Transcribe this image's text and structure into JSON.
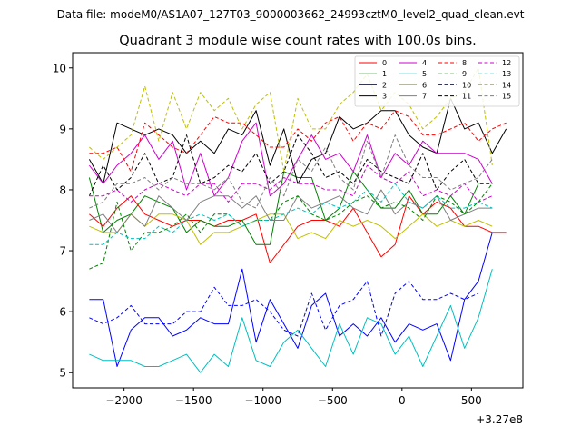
{
  "chart_data": {
    "type": "line",
    "suptitle": "Data file: modeM0/AS1A07_127T03_9000003662_24993cztM0_level2_quad_clean.evt",
    "title": "Quadrant 3 module wise count rates with 100.0s bins.",
    "xlabel": "",
    "ylabel": "",
    "x_offset_label": "+3.27e8",
    "xlim": [
      -2370,
      870
    ],
    "ylim": [
      4.75,
      10.25
    ],
    "xticks": [
      -2000,
      -1500,
      -1000,
      -500,
      0,
      500
    ],
    "xtick_labels": [
      "−2000",
      "−1500",
      "−1000",
      "−500",
      "0",
      "500"
    ],
    "yticks": [
      5,
      6,
      7,
      8,
      9,
      10
    ],
    "ytick_labels": [
      "5",
      "6",
      "7",
      "8",
      "9",
      "10"
    ],
    "legend_position": "upper-right",
    "x_start": -2250,
    "x_step": 100,
    "series": [
      {
        "name": "0",
        "color": "#ff0000",
        "dash": "solid",
        "values": [
          7.6,
          7.4,
          7.7,
          7.9,
          7.6,
          7.5,
          7.4,
          7.5,
          7.5,
          7.4,
          7.5,
          7.5,
          7.6,
          6.8,
          7.1,
          7.4,
          7.5,
          7.5,
          7.4,
          7.7,
          7.3,
          6.9,
          7.1,
          7.9,
          7.6,
          7.8,
          7.7,
          7.4,
          7.4,
          7.3,
          7.3
        ]
      },
      {
        "name": "1",
        "color": "#008000",
        "dash": "solid",
        "values": [
          8.2,
          7.3,
          7.5,
          7.6,
          7.9,
          7.8,
          7.7,
          7.3,
          7.5,
          7.4,
          7.4,
          7.5,
          7.1,
          7.1,
          8.3,
          8.2,
          8.2,
          7.5,
          7.7,
          8.3,
          8.0,
          7.7,
          7.7,
          8.0,
          7.6,
          7.6,
          7.9,
          7.6,
          8.1
        ]
      },
      {
        "name": "2",
        "color": "#0000ff",
        "dash": "solid",
        "values": [
          6.2,
          6.2,
          5.1,
          5.7,
          5.9,
          5.9,
          5.6,
          5.7,
          5.9,
          5.8,
          5.8,
          6.7,
          5.5,
          6.2,
          5.8,
          5.4,
          6.1,
          6.3,
          5.6,
          5.8,
          5.6,
          5.9,
          5.5,
          5.8,
          5.7,
          5.8,
          5.2,
          6.2,
          6.5,
          7.3
        ]
      },
      {
        "name": "3",
        "color": "#000000",
        "dash": "solid",
        "values": [
          8.5,
          8.1,
          9.1,
          9.0,
          8.9,
          9.0,
          8.9,
          8.6,
          8.8,
          8.6,
          9.0,
          8.9,
          9.3,
          8.4,
          9.0,
          8.1,
          8.5,
          8.6,
          9.2,
          9.0,
          9.1,
          9.3,
          9.3,
          8.9,
          8.7,
          8.6,
          9.5,
          9.0,
          9.1,
          8.6,
          9.0
        ]
      },
      {
        "name": "4",
        "color": "#cc00cc",
        "dash": "solid",
        "values": [
          8.4,
          8.1,
          8.4,
          8.6,
          8.9,
          8.5,
          8.8,
          8.0,
          8.6,
          7.9,
          8.2,
          8.8,
          9.1,
          7.9,
          8.1,
          8.5,
          8.9,
          8.5,
          8.6,
          8.3,
          8.9,
          8.2,
          8.6,
          8.4,
          8.8,
          8.6,
          8.6,
          8.6,
          8.5,
          8.1
        ]
      },
      {
        "name": "5",
        "color": "#00bfbf",
        "dash": "solid",
        "values": [
          5.3,
          5.2,
          5.2,
          5.2,
          5.1,
          5.1,
          5.2,
          5.3,
          5.0,
          5.3,
          5.1,
          5.9,
          5.2,
          5.1,
          5.5,
          5.7,
          5.4,
          5.1,
          5.8,
          5.3,
          5.9,
          5.8,
          5.3,
          5.6,
          5.1,
          5.6,
          6.1,
          5.4,
          5.9,
          6.7
        ]
      },
      {
        "name": "6",
        "color": "#bfbf00",
        "dash": "solid",
        "values": [
          7.4,
          7.3,
          7.3,
          7.6,
          7.4,
          7.6,
          7.6,
          7.5,
          7.1,
          7.3,
          7.3,
          7.4,
          7.5,
          7.6,
          7.6,
          7.2,
          7.3,
          7.2,
          7.5,
          7.4,
          7.5,
          7.4,
          7.2,
          7.4,
          7.6,
          7.4,
          7.5,
          7.4,
          7.5,
          7.4
        ]
      },
      {
        "name": "7",
        "color": "#7f7f7f",
        "dash": "solid",
        "values": [
          7.5,
          7.6,
          7.3,
          7.6,
          7.4,
          7.9,
          7.7,
          7.5,
          7.8,
          7.9,
          7.9,
          7.7,
          7.9,
          7.5,
          7.5,
          7.9,
          7.7,
          7.8,
          7.9,
          7.7,
          7.6,
          8.0,
          7.6,
          7.8,
          7.7,
          7.9,
          7.5,
          7.6,
          7.7,
          7.7
        ]
      },
      {
        "name": "8",
        "color": "#ff0000",
        "dash": "dashed",
        "values": [
          8.6,
          8.6,
          8.7,
          8.3,
          9.1,
          8.9,
          8.7,
          8.6,
          8.9,
          9.2,
          9.1,
          9.1,
          8.9,
          8.7,
          8.7,
          9.0,
          8.8,
          9.1,
          9.2,
          8.8,
          9.1,
          9.0,
          9.3,
          9.2,
          8.9,
          8.9,
          9.0,
          9.1,
          8.8,
          9.0,
          9.1
        ]
      },
      {
        "name": "9",
        "color": "#008000",
        "dash": "dashed",
        "values": [
          6.7,
          6.8,
          7.8,
          7.0,
          7.3,
          7.3,
          7.4,
          7.6,
          7.3,
          7.6,
          7.6,
          7.4,
          7.5,
          7.5,
          7.8,
          7.9,
          7.6,
          7.5,
          7.6,
          7.8,
          7.9,
          7.7,
          7.8,
          7.7,
          7.5,
          7.9,
          7.8,
          7.6,
          7.8,
          8.1
        ]
      },
      {
        "name": "10",
        "color": "#0000ff",
        "dash": "dashed",
        "values": [
          5.9,
          5.8,
          5.9,
          6.1,
          5.8,
          5.8,
          5.8,
          6.0,
          6.0,
          6.4,
          6.1,
          6.1,
          6.2,
          6.0,
          5.7,
          5.6,
          6.3,
          5.7,
          6.1,
          6.2,
          6.5,
          5.6,
          6.3,
          6.5,
          6.2,
          6.2,
          6.3,
          6.2,
          6.3
        ]
      },
      {
        "name": "11",
        "color": "#000000",
        "dash": "dashed",
        "values": [
          7.9,
          8.4,
          8.0,
          8.2,
          8.6,
          8.1,
          8.2,
          8.9,
          8.1,
          8.2,
          8.4,
          8.3,
          8.6,
          8.1,
          8.3,
          8.9,
          8.6,
          8.2,
          8.3,
          8.1,
          8.5,
          8.3,
          8.2,
          8.1,
          8.6,
          8.0,
          8.3,
          8.5,
          8.1,
          8.1
        ]
      },
      {
        "name": "12",
        "color": "#cc00cc",
        "dash": "dashed",
        "values": [
          7.9,
          7.9,
          8.0,
          7.8,
          8.0,
          8.1,
          8.0,
          7.9,
          8.1,
          8.1,
          7.8,
          8.1,
          8.1,
          8.0,
          8.2,
          8.1,
          8.1,
          8.0,
          8.0,
          7.9,
          8.4,
          8.2,
          8.1,
          8.3,
          7.9,
          8.0,
          7.9,
          8.1,
          7.8,
          7.9
        ]
      },
      {
        "name": "13",
        "color": "#00bfbf",
        "dash": "dashed",
        "values": [
          7.1,
          7.1,
          7.3,
          7.2,
          7.2,
          7.4,
          7.3,
          7.5,
          7.6,
          7.5,
          7.6,
          7.4,
          7.5,
          7.5,
          7.6,
          7.7,
          7.6,
          7.8,
          7.7,
          7.8,
          8.0,
          7.8,
          8.1,
          7.8,
          7.7,
          7.9,
          7.7,
          7.7,
          7.8,
          7.7
        ]
      },
      {
        "name": "14",
        "color": "#bfbf00",
        "dash": "dashed",
        "values": [
          8.7,
          8.5,
          8.7,
          8.9,
          9.7,
          8.8,
          9.6,
          9.0,
          9.6,
          9.3,
          9.5,
          9.0,
          9.4,
          9.6,
          8.3,
          9.5,
          9.0,
          9.0,
          9.4,
          9.6,
          9.9,
          9.3,
          9.6,
          9.4,
          9.0,
          9.2,
          9.5,
          9.6,
          10.0,
          8.4
        ]
      },
      {
        "name": "15",
        "color": "#7f7f7f",
        "dash": "dashed",
        "values": [
          7.7,
          7.8,
          8.1,
          8.1,
          8.2,
          8.0,
          8.2,
          8.1,
          8.1,
          8.0,
          8.2,
          7.8,
          7.7,
          8.2,
          7.9,
          8.5,
          8.3,
          8.7,
          8.2,
          8.0,
          8.8,
          8.2,
          8.9,
          8.4,
          8.2,
          8.2,
          8.0,
          8.1,
          8.2,
          8.5
        ]
      }
    ]
  }
}
